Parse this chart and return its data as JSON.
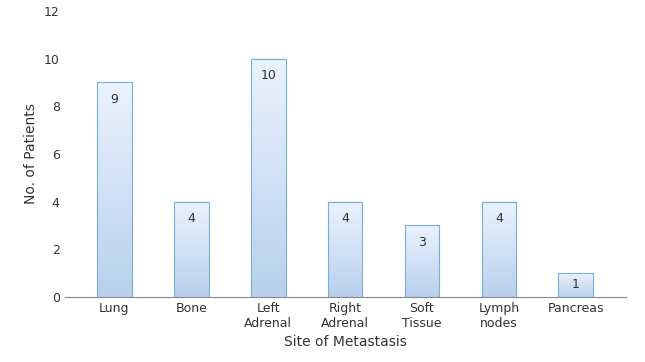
{
  "categories": [
    "Lung",
    "Bone",
    "Left\nAdrenal",
    "Right\nAdrenal",
    "Soft\nTissue",
    "Lymph\nnodes",
    "Pancreas"
  ],
  "values": [
    9,
    4,
    10,
    4,
    3,
    4,
    1
  ],
  "bar_face_color_top": "#eaf2fc",
  "bar_face_color_bottom": "#b8d0ed",
  "bar_edge_color": "#7aadd4",
  "ylabel": "No. of Patients",
  "xlabel": "Site of Metastasis",
  "ylim": [
    0,
    12
  ],
  "yticks": [
    0,
    2,
    4,
    6,
    8,
    10,
    12
  ],
  "label_fontsize": 10,
  "tick_fontsize": 9,
  "value_label_fontsize": 9,
  "background_color": "#ffffff"
}
